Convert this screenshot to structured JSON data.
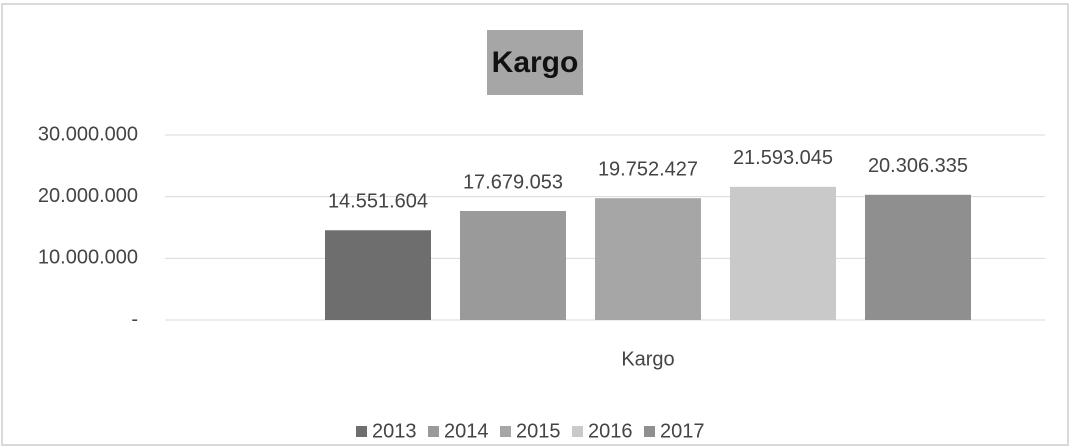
{
  "chart_data": {
    "type": "bar",
    "title": "Kargo",
    "categories": [
      "Kargo"
    ],
    "series": [
      {
        "name": "2013",
        "color": "#6e6e6e",
        "values": [
          14551604
        ],
        "value_labels": [
          "14.551.604"
        ]
      },
      {
        "name": "2014",
        "color": "#9a9a9a",
        "values": [
          17679053
        ],
        "value_labels": [
          "17.679.053"
        ]
      },
      {
        "name": "2015",
        "color": "#a6a6a6",
        "values": [
          19752427
        ],
        "value_labels": [
          "19.752.427"
        ]
      },
      {
        "name": "2016",
        "color": "#c9c9c9",
        "values": [
          21593045
        ],
        "value_labels": [
          "21.593.045"
        ]
      },
      {
        "name": "2017",
        "color": "#8f8f8f",
        "values": [
          20306335
        ],
        "value_labels": [
          "20.306.335"
        ]
      }
    ],
    "ylim": [
      0,
      30000000
    ],
    "yticks": [
      {
        "value": 0,
        "label": "-"
      },
      {
        "value": 10000000,
        "label": "10.000.000"
      },
      {
        "value": 20000000,
        "label": "20.000.000"
      },
      {
        "value": 30000000,
        "label": "30.000.000"
      }
    ],
    "grid": true,
    "legend": "bottom"
  }
}
